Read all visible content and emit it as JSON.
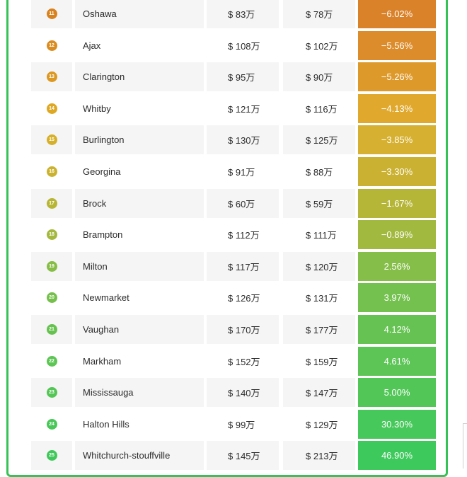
{
  "rows": [
    {
      "rank": "11",
      "name": "Oshawa",
      "price_before": "$ 83万",
      "price_after": "$ 78万",
      "change": "−6.02%",
      "rank_color": "#d8821f",
      "change_color": "#d9822a"
    },
    {
      "rank": "12",
      "name": "Ajax",
      "price_before": "$ 108万",
      "price_after": "$ 102万",
      "change": "−5.56%",
      "rank_color": "#da8c1f",
      "change_color": "#dc8c2a"
    },
    {
      "rank": "13",
      "name": "Clarington",
      "price_before": "$ 95万",
      "price_after": "$ 90万",
      "change": "−5.26%",
      "rank_color": "#dc9820",
      "change_color": "#de992b"
    },
    {
      "rank": "14",
      "name": "Whitby",
      "price_before": "$ 121万",
      "price_after": "$ 116万",
      "change": "−4.13%",
      "rank_color": "#dfa823",
      "change_color": "#e0a92e"
    },
    {
      "rank": "15",
      "name": "Burlington",
      "price_before": "$ 130万",
      "price_after": "$ 125万",
      "change": "−3.85%",
      "rank_color": "#d6b028",
      "change_color": "#d6b030"
    },
    {
      "rank": "16",
      "name": "Georgina",
      "price_before": "$ 91万",
      "price_after": "$ 88万",
      "change": "−3.30%",
      "rank_color": "#cbb22e",
      "change_color": "#cab132"
    },
    {
      "rank": "17",
      "name": "Brock",
      "price_before": "$ 60万",
      "price_after": "$ 59万",
      "change": "−1.67%",
      "rank_color": "#b7b534",
      "change_color": "#b5b538"
    },
    {
      "rank": "18",
      "name": "Brampton",
      "price_before": "$ 112万",
      "price_after": "$ 111万",
      "change": "−0.89%",
      "rank_color": "#a3b83c",
      "change_color": "#a2b940"
    },
    {
      "rank": "19",
      "name": "Milton",
      "price_before": "$ 117万",
      "price_after": "$ 120万",
      "change": "2.56%",
      "rank_color": "#86bd45",
      "change_color": "#85be49"
    },
    {
      "rank": "20",
      "name": "Newmarket",
      "price_before": "$ 126万",
      "price_after": "$ 131万",
      "change": "3.97%",
      "rank_color": "#74c04b",
      "change_color": "#74c14f"
    },
    {
      "rank": "21",
      "name": "Vaughan",
      "price_before": "$ 170万",
      "price_after": "$ 177万",
      "change": "4.12%",
      "rank_color": "#66c24f",
      "change_color": "#66c353"
    },
    {
      "rank": "22",
      "name": "Markham",
      "price_before": "$ 152万",
      "price_after": "$ 159万",
      "change": "4.61%",
      "rank_color": "#5cc553",
      "change_color": "#5cc556"
    },
    {
      "rank": "23",
      "name": "Mississauga",
      "price_before": "$ 140万",
      "price_after": "$ 147万",
      "change": "5.00%",
      "rank_color": "#53c655",
      "change_color": "#52c758"
    },
    {
      "rank": "24",
      "name": "Halton Hills",
      "price_before": "$ 99万",
      "price_after": "$ 129万",
      "change": "30.30%",
      "rank_color": "#48c758",
      "change_color": "#47c85b"
    },
    {
      "rank": "25",
      "name": "Whitchurch-stouffville",
      "price_before": "$ 145万",
      "price_after": "$ 213万",
      "change": "46.90%",
      "rank_color": "#3fc85a",
      "change_color": "#3ec95c"
    }
  ]
}
